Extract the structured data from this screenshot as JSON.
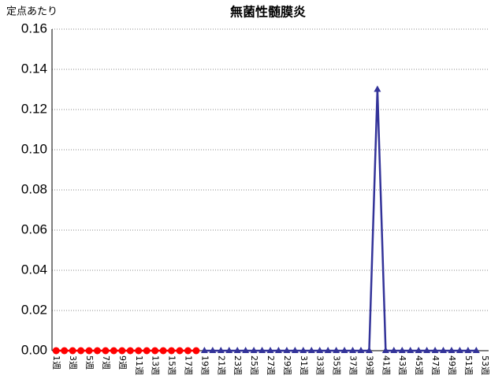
{
  "chart_data": {
    "type": "line",
    "title": "無菌性髄膜炎",
    "y_label": "定点あたり",
    "categories": [
      "1週",
      null,
      "3週",
      null,
      "5週",
      null,
      "7週",
      null,
      "9週",
      null,
      "11週",
      null,
      "13週",
      null,
      "15週",
      null,
      "17週",
      null,
      "19週",
      null,
      "21週",
      null,
      "23週",
      null,
      "25週",
      null,
      "27週",
      null,
      "29週",
      null,
      "31週",
      null,
      "33週",
      null,
      "35週",
      null,
      "37週",
      null,
      "39週",
      null,
      "41週",
      null,
      "43週",
      null,
      "45週",
      null,
      "47週",
      null,
      "49週",
      null,
      "51週",
      null,
      "53週"
    ],
    "series": [
      {
        "color": "#ff0000",
        "marker": "circle",
        "values": [
          0,
          0,
          0,
          0,
          0,
          0,
          0,
          0,
          0,
          0,
          0,
          0,
          0,
          0,
          0,
          0,
          0,
          0,
          null,
          null,
          null,
          null,
          null,
          null,
          null,
          null,
          null,
          null,
          null,
          null,
          null,
          null,
          null,
          null,
          null,
          null,
          null,
          null,
          null,
          null,
          null,
          null,
          null,
          null,
          null,
          null,
          null,
          null,
          null,
          null,
          null,
          null,
          null
        ]
      },
      {
        "color": "#333399",
        "marker": "triangle",
        "values": [
          null,
          null,
          null,
          null,
          null,
          null,
          null,
          null,
          null,
          null,
          null,
          null,
          null,
          null,
          null,
          null,
          null,
          null,
          0,
          0,
          0,
          0,
          0,
          0,
          0,
          0,
          0,
          0,
          0,
          0,
          0,
          0,
          0,
          0,
          0,
          0,
          0,
          0,
          0,
          0.13,
          0,
          0,
          0,
          0,
          0,
          0,
          0,
          0,
          0,
          0,
          0,
          0,
          null
        ]
      }
    ],
    "ylim": [
      0,
      0.16
    ],
    "yticks": [
      {
        "value": 0,
        "label": "0.00"
      },
      {
        "value": 0.02,
        "label": "0.02"
      },
      {
        "value": 0.04,
        "label": "0.04"
      },
      {
        "value": 0.06,
        "label": "0.06"
      },
      {
        "value": 0.08,
        "label": "0.08"
      },
      {
        "value": 0.1,
        "label": "0.10"
      },
      {
        "value": 0.12,
        "label": "0.12"
      },
      {
        "value": 0.14,
        "label": "0.14"
      },
      {
        "value": 0.16,
        "label": "0.16"
      }
    ],
    "grid": true
  }
}
